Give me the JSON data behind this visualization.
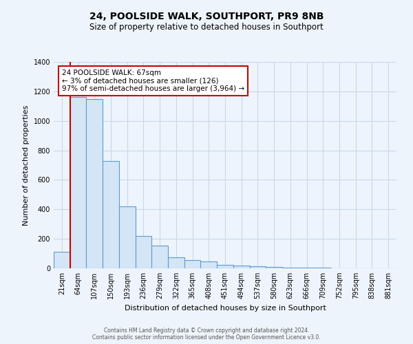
{
  "title": "24, POOLSIDE WALK, SOUTHPORT, PR9 8NB",
  "subtitle": "Size of property relative to detached houses in Southport",
  "xlabel": "Distribution of detached houses by size in Southport",
  "ylabel": "Number of detached properties",
  "bar_labels": [
    "21sqm",
    "64sqm",
    "107sqm",
    "150sqm",
    "193sqm",
    "236sqm",
    "279sqm",
    "322sqm",
    "365sqm",
    "408sqm",
    "451sqm",
    "494sqm",
    "537sqm",
    "580sqm",
    "623sqm",
    "666sqm",
    "709sqm",
    "752sqm",
    "795sqm",
    "838sqm",
    "881sqm"
  ],
  "bar_values": [
    110,
    1160,
    1150,
    730,
    420,
    220,
    155,
    75,
    55,
    45,
    25,
    20,
    15,
    10,
    5,
    5,
    3,
    2,
    1,
    1,
    1
  ],
  "bar_fill_color": "#d4e5f5",
  "bar_edge_color": "#5b9bd5",
  "red_line_index": 1,
  "annotation_title": "24 POOLSIDE WALK: 67sqm",
  "annotation_line1": "← 3% of detached houses are smaller (126)",
  "annotation_line2": "97% of semi-detached houses are larger (3,964) →",
  "annotation_box_color": "#ffffff",
  "annotation_box_edge_color": "#cc0000",
  "ylim": [
    0,
    1400
  ],
  "yticks": [
    0,
    200,
    400,
    600,
    800,
    1000,
    1200,
    1400
  ],
  "footer_line1": "Contains HM Land Registry data © Crown copyright and database right 2024.",
  "footer_line2": "Contains public sector information licensed under the Open Government Licence v3.0.",
  "background_color": "#eef4fb",
  "plot_bg_color": "#eef4fb",
  "grid_color": "#c8d8ea",
  "red_line_color": "#cc0000",
  "title_fontsize": 10,
  "subtitle_fontsize": 8.5,
  "xlabel_fontsize": 8,
  "ylabel_fontsize": 8,
  "tick_fontsize": 7,
  "footer_fontsize": 5.5
}
